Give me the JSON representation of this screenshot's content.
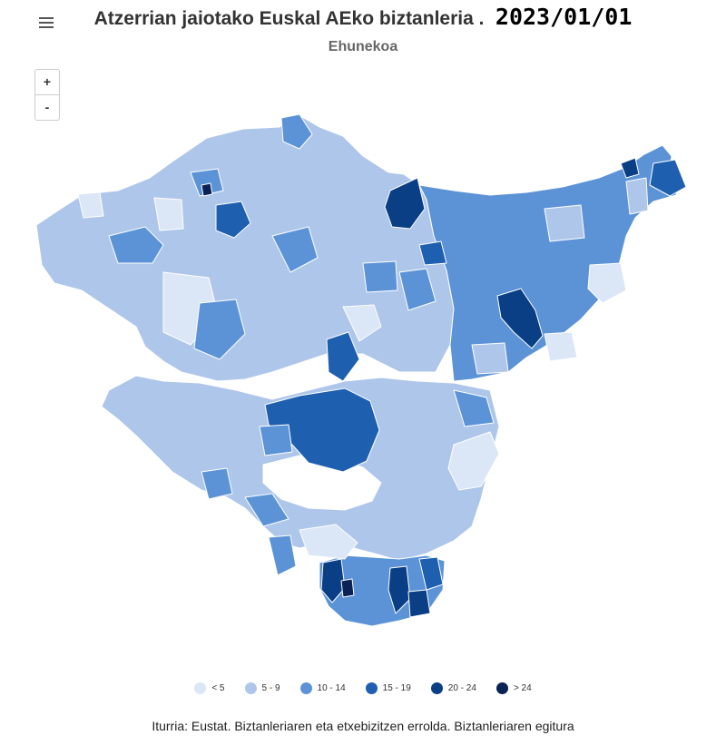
{
  "header": {
    "title": "Atzerrian jaiotako Euskal AEko biztanleria .",
    "date": "2023/01/01",
    "subtitle": "Ehunekoa"
  },
  "controls": {
    "zoom_in_label": "+",
    "zoom_out_label": "-",
    "menu_icon": "hamburger-icon"
  },
  "legend": {
    "items": [
      {
        "label": "< 5",
        "color": "#dbe6f6"
      },
      {
        "label": "5 - 9",
        "color": "#aec6ea"
      },
      {
        "label": "10 - 14",
        "color": "#5b93d6"
      },
      {
        "label": "15 - 19",
        "color": "#1f5fb0"
      },
      {
        "label": "20 - 24",
        "color": "#0a3f86"
      },
      {
        "label": "> 24",
        "color": "#0a2256"
      }
    ]
  },
  "credits": "Iturria: Eustat. Biztanleriaren eta etxebizitzen errolda. Biztanleriaren egitura"
}
